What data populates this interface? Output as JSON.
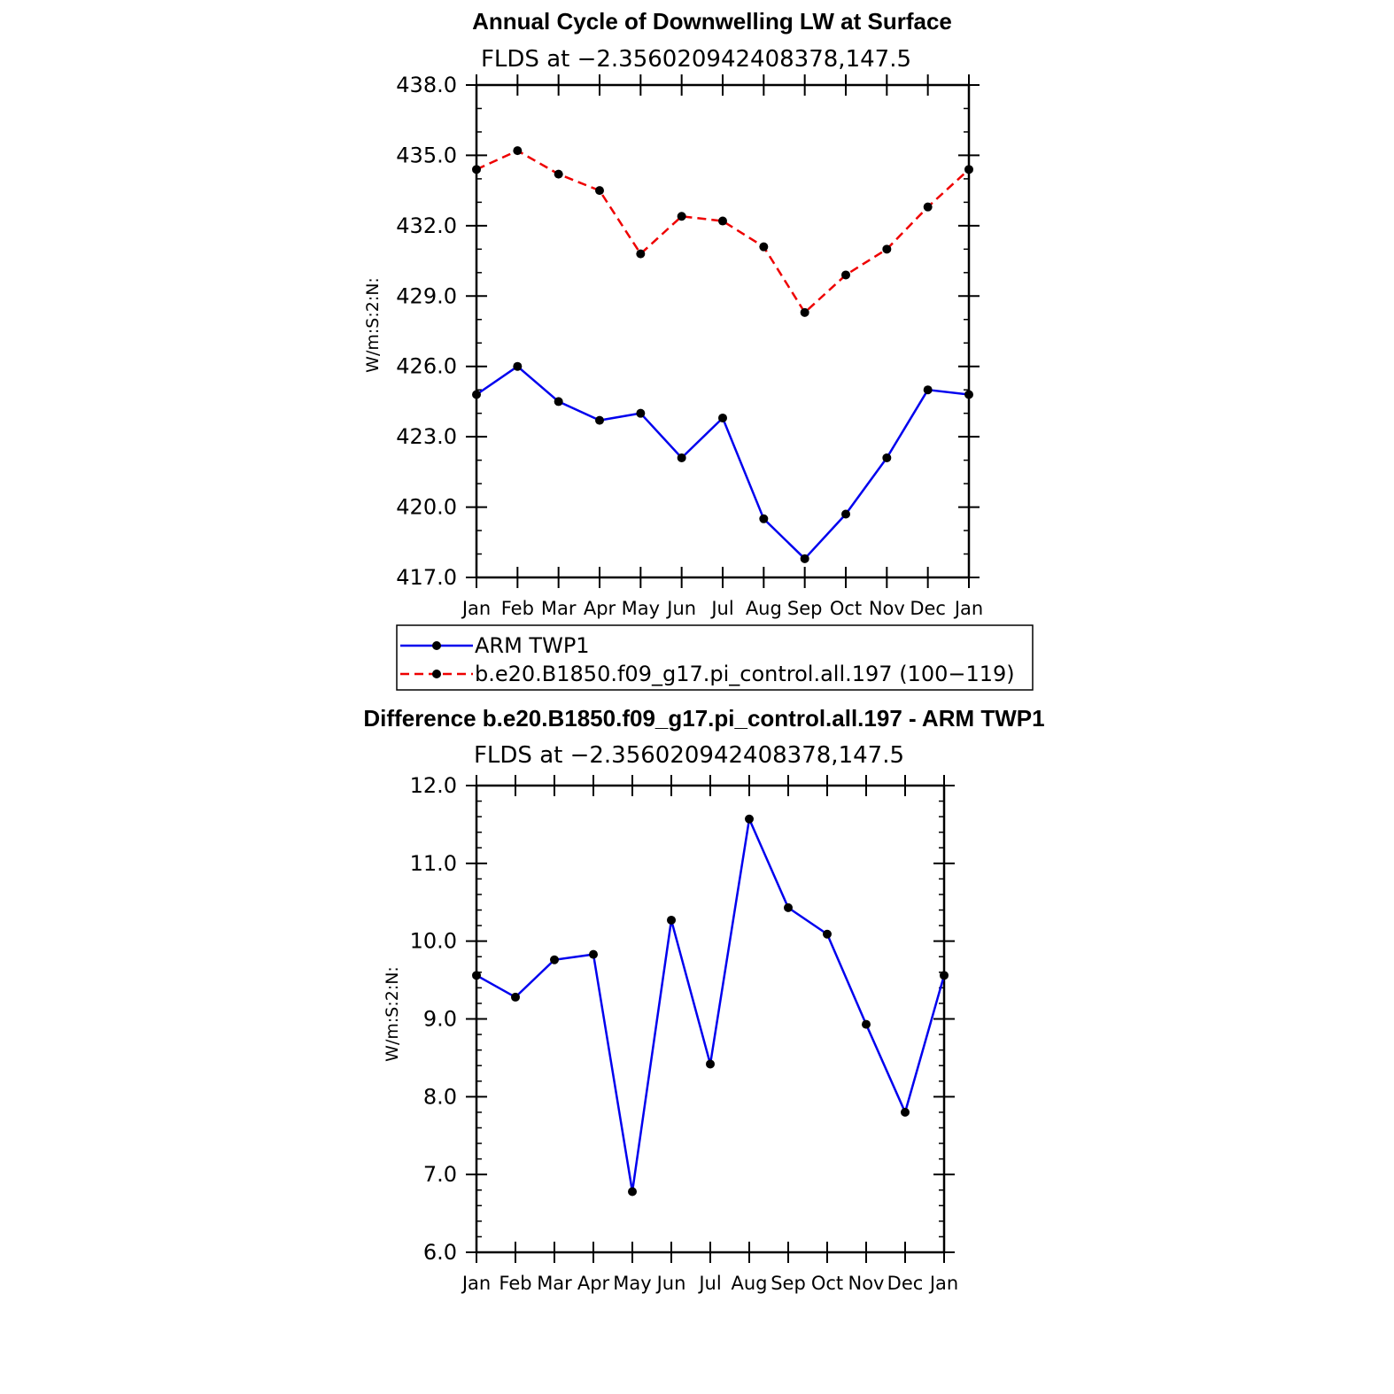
{
  "colors": {
    "arm": "#0000ee",
    "model": "#ee0000",
    "marker": "#000000"
  },
  "chart_data": [
    {
      "type": "line",
      "title": "Annual Cycle of Downwelling LW at Surface",
      "subtitle": "FLDS at −2.356020942408378,147.5",
      "ylabel": "W/m:S:2:N:",
      "ylim": [
        417.0,
        438.0
      ],
      "ytick_labels": [
        "417.0",
        "420.0",
        "423.0",
        "426.0",
        "429.0",
        "432.0",
        "435.0",
        "438.0"
      ],
      "yticks": [
        417,
        420,
        423,
        426,
        429,
        432,
        435,
        438
      ],
      "categories": [
        "Jan",
        "Feb",
        "Mar",
        "Apr",
        "May",
        "Jun",
        "Jul",
        "Aug",
        "Sep",
        "Oct",
        "Nov",
        "Dec",
        "Jan"
      ],
      "grid": false,
      "legend_placement": "below",
      "series": [
        {
          "name": "ARM TWP1",
          "color": "#0000ee",
          "dash": "solid",
          "values": [
            424.8,
            426.0,
            424.5,
            423.7,
            424.0,
            422.1,
            423.8,
            419.5,
            417.8,
            419.7,
            422.1,
            425.0,
            424.8
          ]
        },
        {
          "name": "b.e20.B1850.f09_g17.pi_control.all.197 (100−119)",
          "color": "#ee0000",
          "dash": "dashed",
          "values": [
            434.4,
            435.2,
            434.2,
            433.5,
            430.8,
            432.4,
            432.2,
            431.1,
            428.3,
            429.9,
            431.0,
            432.8,
            434.4
          ]
        }
      ]
    },
    {
      "type": "line",
      "title": "Difference b.e20.B1850.f09_g17.pi_control.all.197 - ARM TWP1",
      "subtitle": "FLDS at −2.356020942408378,147.5",
      "ylabel": "W/m:S:2:N:",
      "ylim": [
        6.0,
        12.0
      ],
      "ytick_labels": [
        "6.0",
        "7.0",
        "8.0",
        "9.0",
        "10.0",
        "11.0",
        "12.0"
      ],
      "yticks": [
        6,
        7,
        8,
        9,
        10,
        11,
        12
      ],
      "categories": [
        "Jan",
        "Feb",
        "Mar",
        "Apr",
        "May",
        "Jun",
        "Jul",
        "Aug",
        "Sep",
        "Oct",
        "Nov",
        "Dec",
        "Jan"
      ],
      "grid": false,
      "series": [
        {
          "color": "#0000ee",
          "dash": "solid",
          "values": [
            9.56,
            9.28,
            9.76,
            9.83,
            6.78,
            10.27,
            8.42,
            11.57,
            10.43,
            10.09,
            8.93,
            7.8,
            9.56
          ]
        }
      ]
    }
  ]
}
